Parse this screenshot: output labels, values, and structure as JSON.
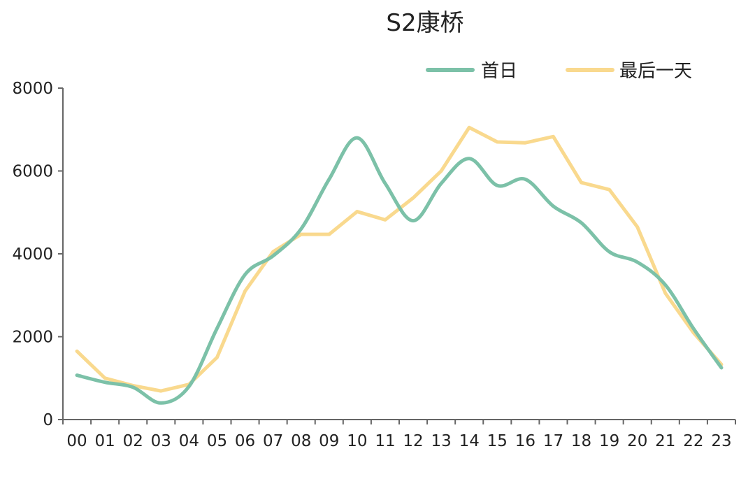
{
  "chart_data": {
    "type": "line",
    "title": "S2康桥",
    "xlabel": "",
    "ylabel": "",
    "categories": [
      "00",
      "01",
      "02",
      "03",
      "04",
      "05",
      "06",
      "07",
      "08",
      "09",
      "10",
      "11",
      "12",
      "13",
      "14",
      "15",
      "16",
      "17",
      "18",
      "19",
      "20",
      "21",
      "22",
      "23"
    ],
    "ylim": [
      0,
      8000
    ],
    "yticks": [
      0,
      2000,
      4000,
      6000,
      8000
    ],
    "grid": false,
    "legend_position": "top-right",
    "series": [
      {
        "name": "首日",
        "color": "#7cc1a8",
        "smooth": true,
        "values": [
          1070,
          900,
          780,
          400,
          800,
          2200,
          3500,
          3950,
          4600,
          5800,
          6800,
          5700,
          4800,
          5700,
          6300,
          5650,
          5800,
          5150,
          4750,
          4050,
          3800,
          3250,
          2200,
          1250
        ]
      },
      {
        "name": "最后一天",
        "color": "#f9d98e",
        "smooth": false,
        "values": [
          1650,
          1000,
          820,
          690,
          850,
          1500,
          3100,
          4050,
          4470,
          4470,
          5020,
          4820,
          5350,
          6000,
          7050,
          6700,
          6680,
          6830,
          5720,
          5550,
          4650,
          3050,
          2100,
          1330
        ]
      }
    ]
  }
}
